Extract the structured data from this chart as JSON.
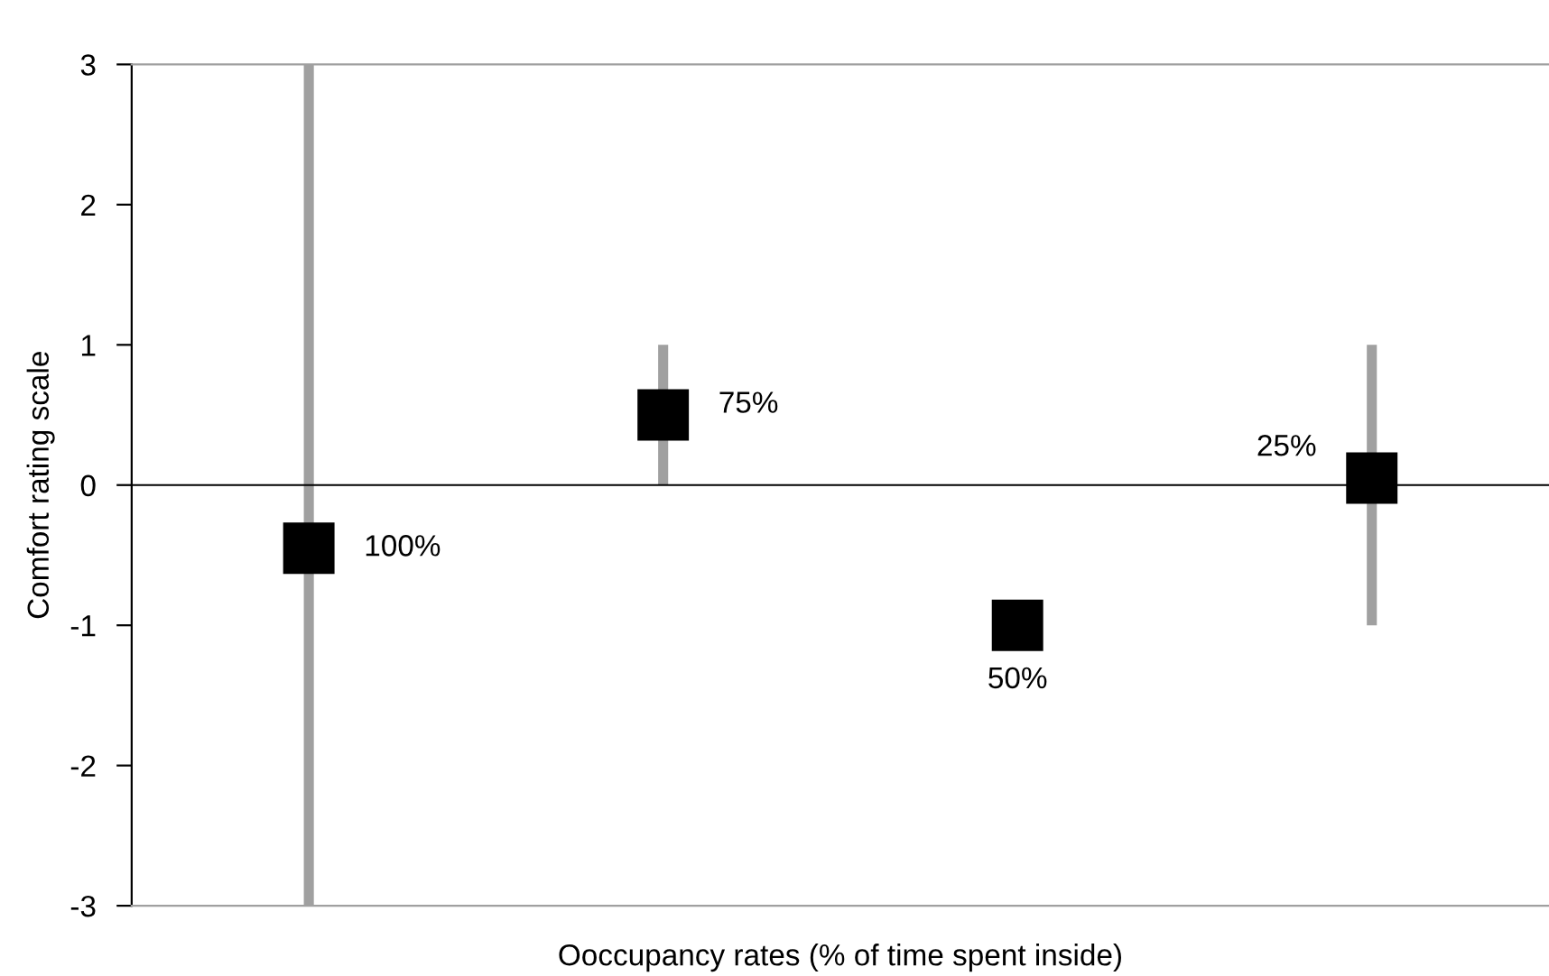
{
  "chart_data": {
    "type": "scatter",
    "xlabel": "Ooccupancy rates (% of time spent inside)",
    "ylabel": "Comfort rating scale",
    "categories": [
      "100%",
      "75%",
      "50%",
      "25%"
    ],
    "series": [
      {
        "color": "#000000",
        "values": [
          -0.45,
          0.5,
          -1.0,
          0.05
        ],
        "errors": [
          [
            -3,
            3
          ],
          [
            0,
            1
          ],
          null,
          [
            -1,
            1
          ]
        ]
      }
    ],
    "ylim": [
      -3,
      3
    ],
    "yticks": [
      -3,
      -2,
      -1,
      0,
      1,
      2,
      3
    ],
    "marker": "square",
    "grid": false,
    "legend": false
  }
}
